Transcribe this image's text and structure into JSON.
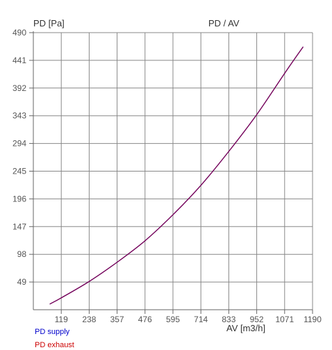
{
  "chart_data": {
    "type": "line",
    "title": "PD / AV",
    "ylabel": "PD [Pa]",
    "xlabel": "AV [m3/h]",
    "xlim": [
      0,
      1190
    ],
    "ylim": [
      0,
      490
    ],
    "x_ticks": [
      "119",
      "238",
      "357",
      "476",
      "595",
      "714",
      "833",
      "952",
      "1071",
      "1190"
    ],
    "y_ticks": [
      "49",
      "98",
      "147",
      "196",
      "245",
      "294",
      "343",
      "392",
      "441",
      "490"
    ],
    "grid": true,
    "legend_position": "bottom-left",
    "series": [
      {
        "name": "PD supply",
        "color": "#0000cc",
        "x": [
          70,
          119,
          238,
          357,
          476,
          595,
          714,
          833,
          952,
          1071,
          1150
        ],
        "y": [
          10,
          21,
          50,
          84,
          122,
          168,
          220,
          280,
          345,
          418,
          465
        ]
      },
      {
        "name": "PD exhaust",
        "color": "#cc0000",
        "x": [
          70,
          119,
          238,
          357,
          476,
          595,
          714,
          833,
          952,
          1071,
          1150
        ],
        "y": [
          10,
          21,
          50,
          84,
          122,
          168,
          220,
          280,
          345,
          418,
          465
        ]
      }
    ]
  }
}
